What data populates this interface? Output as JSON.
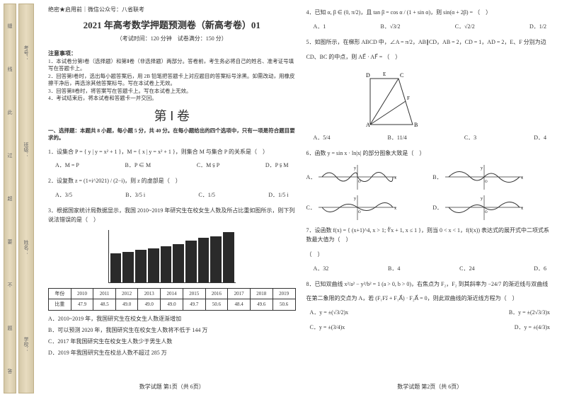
{
  "binding": {
    "strip1_labels": [
      "缝",
      "线",
      "此",
      "过",
      "超",
      "要",
      "不",
      "题",
      "答"
    ],
    "strip2_labels": [
      "考号：",
      "班级：",
      "姓名：",
      "学校："
    ],
    "dots": "○"
  },
  "header": {
    "secret_label": "绝密★启用前｜微信公众号：八省联考",
    "title": "2021 年高考数学押题预测卷（新高考卷）01",
    "subtitle": "（考试时间：120 分钟　试卷满分：150 分）"
  },
  "notice": {
    "heading": "注意事项：",
    "items": [
      "1．本试卷分第Ⅰ卷（选择题）和第Ⅱ卷（非选择题）两部分。答卷前，考生务必将自己的姓名、准考证号填写在答题卡上。",
      "2．回答第Ⅰ卷时，选出每小题答案后，用 2B 铅笔把答题卡上对应题目的答案标号涂黑。如需改动，用橡皮擦干净后，再选涂其他答案标号。写在本试卷上无效。",
      "3．回答第Ⅱ卷时，将答案写在答题卡上。写在本试卷上无效。",
      "4．考试结束后，将本试卷和答题卡一并交回。"
    ]
  },
  "section1": {
    "title": "第 Ⅰ 卷",
    "desc": "一、选择题：本题共 8 小题，每小题 5 分，共 40 分。在每小题给出的四个选项中，只有一项是符合题目要求的。"
  },
  "q1": {
    "text": "1．设集合 P = { y | y = x² + 1 }，M = { x | y = x² + 1 }，则集合 M 与集合 P 的关系是（　）",
    "opts": [
      "A．M = P",
      "B．P ∈ M",
      "C．M ⫋ P",
      "D．P ⫋ M"
    ]
  },
  "q2": {
    "text": "2．设复数 z = (1+i^2021) / (2−i)，则 z 的虚部是（　）",
    "opts": [
      "A．3/5",
      "B．3/5 i",
      "C．1/5",
      "D．1/5 i"
    ]
  },
  "q3": {
    "text": "3．根据国家统计局数据显示，我国 2010~2019 年研究生在校女生人数及所占比重如图所示，则下列说法错误的是（　）"
  },
  "table": {
    "rows": [
      [
        "年份",
        "2010",
        "2011",
        "2012",
        "2013",
        "2014",
        "2015",
        "2016",
        "2017",
        "2018",
        "2019"
      ],
      [
        "比重",
        "47.9",
        "48.5",
        "49.0",
        "49.0",
        "49.0",
        "49.7",
        "50.6",
        "48.4",
        "49.6",
        "50.6"
      ]
    ]
  },
  "q3opts": {
    "a": "A．2010~2019 年，我国研究生在校女生人数逐渐增加",
    "b": "B．可以预测 2020 年，我国研究生在校女生人数将不低于 144 万",
    "c": "C．2017 年我国研究生在校女生人数少于男生人数",
    "d": "D．2019 年我国研究生在校总人数不超过 285 万"
  },
  "q4": {
    "text": "4．已知 α, β ∈ (0, π/2)，且 tan β = cos α / (1 + sin α)，则 sin(α + 2β) = （　）",
    "opts": [
      "A．1",
      "B．√3/2",
      "C．√2/2",
      "D．1/2"
    ]
  },
  "q5": {
    "text": "5．如图所示，在梯形 ABCD 中，∠A = π/2，AB∥CD，AB = 2，CD = 1，AD = 2，E、F 分别为边",
    "text2": "CD、BC 的中点，则 AE⃗ · AF⃗ = （　）",
    "opts": [
      "A．5/4",
      "B．11/4",
      "C．3",
      "D．4"
    ]
  },
  "q6": {
    "text": "6．函数 y = sin x · ln|x| 的部分图象大致是（　）"
  },
  "q7": {
    "text": "7．设函数 f(x) = { (x+1)^4, x > 1; ∜x + 1, x ≤ 1 }，则当 0 < x < 1，f(f(x)) 表达式的展开式中二项式系数最大值为（　）",
    "opts": [
      "A．32",
      "B．4",
      "C．24",
      "D．6"
    ]
  },
  "q8": {
    "text": "8．已知双曲线 x²/a² − y²/b² = 1 (a > 0, b > 0)，右焦点为 F₂，F₂ 到其斜率为 −24/7 的渐近线与双曲线",
    "text2": "在第二象限的交点为 A，若 (F₁F₂⃗ + F₁A⃗) · F₂A⃗ = 0，则此双曲线的渐近线方程为（　）",
    "opts": [
      "A．y = ±(√3/2)x",
      "B．y = ±(2√3/3)x",
      "C．y = ±(3/4)x",
      "D．y = ±(4/3)x"
    ]
  },
  "chart": {
    "values": [
      55,
      58,
      62,
      65,
      68,
      72,
      80,
      85,
      88,
      95
    ],
    "bar_color": "#2a2a2a"
  },
  "footers": {
    "p1": "数学试题 第1页（共 6页）",
    "p2": "数学试题 第2页（共 6页）"
  },
  "colors": {
    "text": "#333333",
    "border": "#333333",
    "strip_bg": "#e0d4b0"
  }
}
